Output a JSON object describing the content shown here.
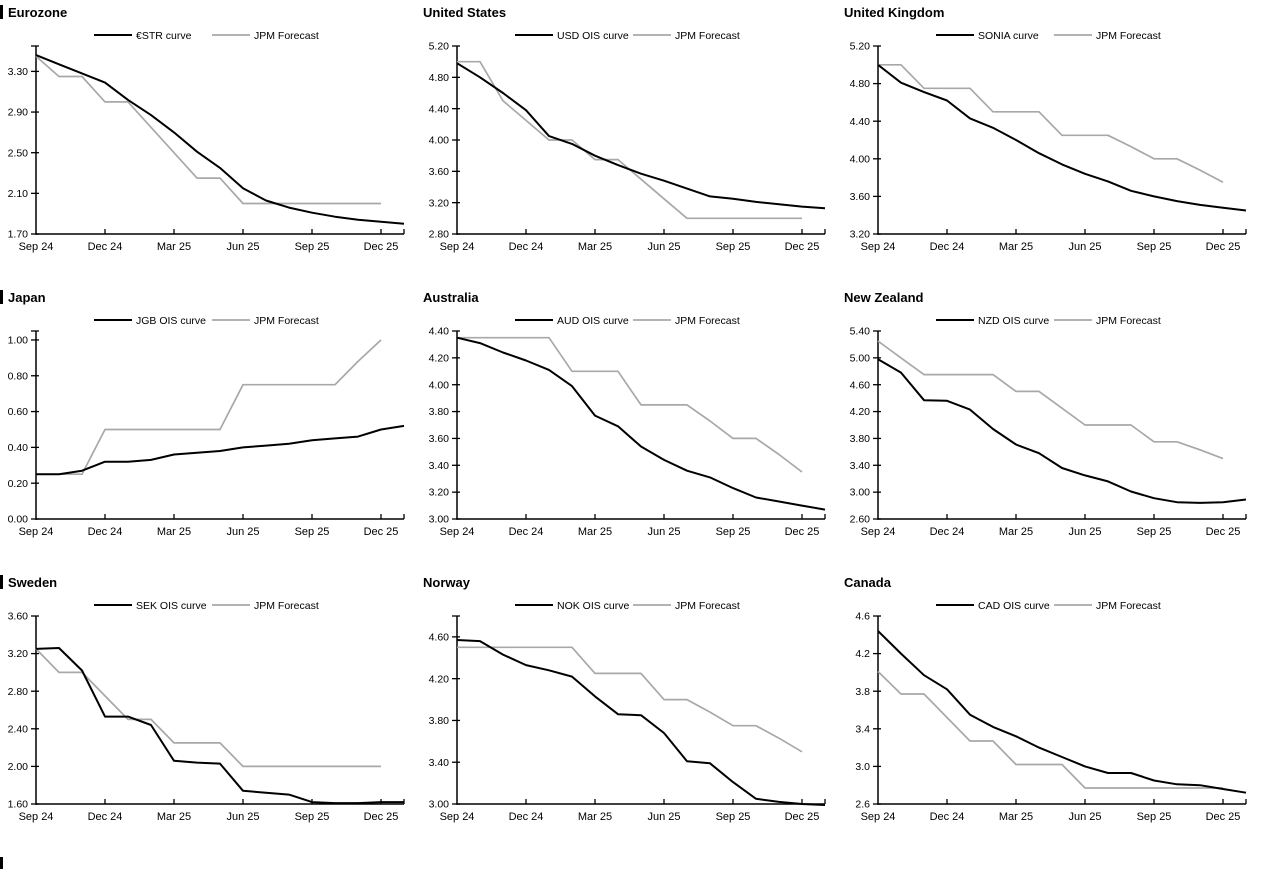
{
  "page": {
    "background": "#ffffff",
    "x_tick_labels": [
      "Sep 24",
      "Dec 24",
      "Mar 25",
      "Jun 25",
      "Sep 25",
      "Dec 25"
    ],
    "x_tick_month_indices": [
      0,
      3,
      6,
      9,
      12,
      15
    ],
    "colors": {
      "main_line": "#000000",
      "forecast_line": "#a8a8a8",
      "axis": "#000000"
    }
  },
  "chart_data": [
    {
      "type": "line",
      "title": "Eurozone",
      "left_bar": true,
      "ylim": [
        1.7,
        3.55
      ],
      "y_ticks": [
        1.7,
        2.1,
        2.5,
        2.9,
        3.3
      ],
      "y_decimals": 2,
      "x_start": "Sep 24",
      "x_end": "Jan 26",
      "series": [
        {
          "name": "€STR curve",
          "role": "main",
          "values": [
            3.46,
            3.37,
            3.28,
            3.19,
            3.02,
            2.87,
            2.7,
            2.51,
            2.35,
            2.15,
            2.03,
            1.96,
            1.91,
            1.87,
            1.84,
            1.82,
            1.8
          ]
        },
        {
          "name": "JPM Forecast",
          "role": "forecast",
          "values": [
            3.45,
            3.25,
            3.25,
            3.0,
            3.0,
            2.75,
            2.5,
            2.25,
            2.25,
            2.0,
            2.0,
            2.0,
            2.0,
            2.0,
            2.0,
            2.0
          ]
        }
      ]
    },
    {
      "type": "line",
      "title": "United States",
      "left_bar": false,
      "ylim": [
        2.8,
        5.2
      ],
      "y_ticks": [
        2.8,
        3.2,
        3.6,
        4.0,
        4.4,
        4.8,
        5.2
      ],
      "y_decimals": 2,
      "x_start": "Sep 24",
      "x_end": "Jan 26",
      "series": [
        {
          "name": "USD OIS curve",
          "role": "main",
          "values": [
            4.98,
            4.8,
            4.6,
            4.38,
            4.05,
            3.95,
            3.8,
            3.68,
            3.57,
            3.48,
            3.38,
            3.28,
            3.25,
            3.21,
            3.18,
            3.15,
            3.13
          ]
        },
        {
          "name": "JPM Forecast",
          "role": "forecast",
          "values": [
            5.0,
            5.0,
            4.5,
            4.25,
            4.0,
            4.0,
            3.75,
            3.75,
            3.5,
            3.25,
            3.0,
            3.0,
            3.0,
            3.0,
            3.0,
            3.0
          ]
        }
      ]
    },
    {
      "type": "line",
      "title": "United Kingdom",
      "left_bar": false,
      "ylim": [
        3.2,
        5.2
      ],
      "y_ticks": [
        3.2,
        3.6,
        4.0,
        4.4,
        4.8,
        5.2
      ],
      "y_decimals": 2,
      "x_start": "Sep 24",
      "x_end": "Jan 26",
      "series": [
        {
          "name": "SONIA curve",
          "role": "main",
          "values": [
            5.0,
            4.81,
            4.71,
            4.62,
            4.43,
            4.33,
            4.2,
            4.06,
            3.94,
            3.84,
            3.76,
            3.66,
            3.6,
            3.55,
            3.51,
            3.48,
            3.45
          ]
        },
        {
          "name": "JPM Forecast",
          "role": "forecast",
          "values": [
            5.0,
            5.0,
            4.75,
            4.75,
            4.75,
            4.5,
            4.5,
            4.5,
            4.25,
            4.25,
            4.25,
            4.13,
            4.0,
            4.0,
            3.88,
            3.75
          ]
        }
      ]
    },
    {
      "type": "line",
      "title": "Japan",
      "left_bar": true,
      "ylim": [
        0.0,
        1.05
      ],
      "y_ticks": [
        0.0,
        0.2,
        0.4,
        0.6,
        0.8,
        1.0
      ],
      "y_decimals": 2,
      "x_start": "Sep 24",
      "x_end": "Jan 26",
      "series": [
        {
          "name": "JGB OIS curve",
          "role": "main",
          "values": [
            0.25,
            0.25,
            0.27,
            0.32,
            0.32,
            0.33,
            0.36,
            0.37,
            0.38,
            0.4,
            0.41,
            0.42,
            0.44,
            0.45,
            0.46,
            0.5,
            0.52
          ]
        },
        {
          "name": "JPM Forecast",
          "role": "forecast",
          "values": [
            0.25,
            0.25,
            0.25,
            0.5,
            0.5,
            0.5,
            0.5,
            0.5,
            0.5,
            0.75,
            0.75,
            0.75,
            0.75,
            0.75,
            0.88,
            1.0
          ]
        }
      ]
    },
    {
      "type": "line",
      "title": "Australia",
      "left_bar": false,
      "ylim": [
        3.0,
        4.4
      ],
      "y_ticks": [
        3.0,
        3.2,
        3.4,
        3.6,
        3.8,
        4.0,
        4.2,
        4.4
      ],
      "y_decimals": 2,
      "x_start": "Sep 24",
      "x_end": "Jan 26",
      "series": [
        {
          "name": "AUD OIS curve",
          "role": "main",
          "values": [
            4.35,
            4.31,
            4.24,
            4.18,
            4.11,
            3.99,
            3.77,
            3.69,
            3.54,
            3.44,
            3.36,
            3.31,
            3.23,
            3.16,
            3.13,
            3.1,
            3.07
          ]
        },
        {
          "name": "JPM Forecast",
          "role": "forecast",
          "values": [
            4.35,
            4.35,
            4.35,
            4.35,
            4.35,
            4.1,
            4.1,
            4.1,
            3.85,
            3.85,
            3.85,
            3.73,
            3.6,
            3.6,
            3.48,
            3.35
          ]
        }
      ]
    },
    {
      "type": "line",
      "title": "New Zealand",
      "left_bar": false,
      "ylim": [
        2.6,
        5.4
      ],
      "y_ticks": [
        2.6,
        3.0,
        3.4,
        3.8,
        4.2,
        4.6,
        5.0,
        5.4
      ],
      "y_decimals": 2,
      "x_start": "Sep 24",
      "x_end": "Jan 26",
      "series": [
        {
          "name": "NZD OIS curve",
          "role": "main",
          "values": [
            4.98,
            4.78,
            4.37,
            4.36,
            4.23,
            3.94,
            3.71,
            3.58,
            3.36,
            3.25,
            3.16,
            3.01,
            2.91,
            2.85,
            2.84,
            2.85,
            2.89
          ]
        },
        {
          "name": "JPM Forecast",
          "role": "forecast",
          "values": [
            5.25,
            5.0,
            4.75,
            4.75,
            4.75,
            4.75,
            4.5,
            4.5,
            4.25,
            4.0,
            4.0,
            4.0,
            3.75,
            3.75,
            3.63,
            3.5
          ]
        }
      ]
    },
    {
      "type": "line",
      "title": "Sweden",
      "left_bar": true,
      "ylim": [
        1.6,
        3.6
      ],
      "y_ticks": [
        1.6,
        2.0,
        2.4,
        2.8,
        3.2,
        3.6
      ],
      "y_decimals": 2,
      "x_start": "Sep 24",
      "x_end": "Jan 26",
      "series": [
        {
          "name": "SEK OIS curve",
          "role": "main",
          "values": [
            3.25,
            3.26,
            3.02,
            2.53,
            2.53,
            2.44,
            2.06,
            2.04,
            2.03,
            1.74,
            1.72,
            1.7,
            1.62,
            1.61,
            1.61,
            1.62,
            1.62
          ]
        },
        {
          "name": "JPM Forecast",
          "role": "forecast",
          "values": [
            3.25,
            3.0,
            3.0,
            2.75,
            2.5,
            2.5,
            2.25,
            2.25,
            2.25,
            2.0,
            2.0,
            2.0,
            2.0,
            2.0,
            2.0,
            2.0
          ]
        }
      ]
    },
    {
      "type": "line",
      "title": "Norway",
      "left_bar": false,
      "ylim": [
        3.0,
        4.8
      ],
      "y_ticks": [
        3.0,
        3.4,
        3.8,
        4.2,
        4.6
      ],
      "y_decimals": 2,
      "x_start": "Sep 24",
      "x_end": "Jan 26",
      "series": [
        {
          "name": "NOK OIS curve",
          "role": "main",
          "values": [
            4.57,
            4.56,
            4.43,
            4.33,
            4.28,
            4.22,
            4.03,
            3.86,
            3.85,
            3.68,
            3.41,
            3.39,
            3.21,
            3.05,
            3.02,
            3.0,
            2.99
          ]
        },
        {
          "name": "JPM Forecast",
          "role": "forecast",
          "values": [
            4.5,
            4.5,
            4.5,
            4.5,
            4.5,
            4.5,
            4.25,
            4.25,
            4.25,
            4.0,
            4.0,
            3.88,
            3.75,
            3.75,
            3.63,
            3.5
          ]
        }
      ]
    },
    {
      "type": "line",
      "title": "Canada",
      "left_bar": false,
      "ylim": [
        2.6,
        4.6
      ],
      "y_ticks": [
        2.6,
        3.0,
        3.4,
        3.8,
        4.2,
        4.6
      ],
      "y_decimals": 1,
      "x_start": "Sep 24",
      "x_end": "Jan 26",
      "series": [
        {
          "name": "CAD OIS curve",
          "role": "main",
          "values": [
            4.44,
            4.2,
            3.97,
            3.82,
            3.55,
            3.42,
            3.32,
            3.2,
            3.1,
            3.0,
            2.93,
            2.93,
            2.85,
            2.81,
            2.8,
            2.76,
            2.72
          ]
        },
        {
          "name": "JPM Forecast",
          "role": "forecast",
          "values": [
            4.01,
            3.77,
            3.77,
            3.52,
            3.27,
            3.27,
            3.02,
            3.02,
            3.02,
            2.77,
            2.77,
            2.77,
            2.77,
            2.77,
            2.77,
            2.77
          ]
        }
      ]
    }
  ]
}
